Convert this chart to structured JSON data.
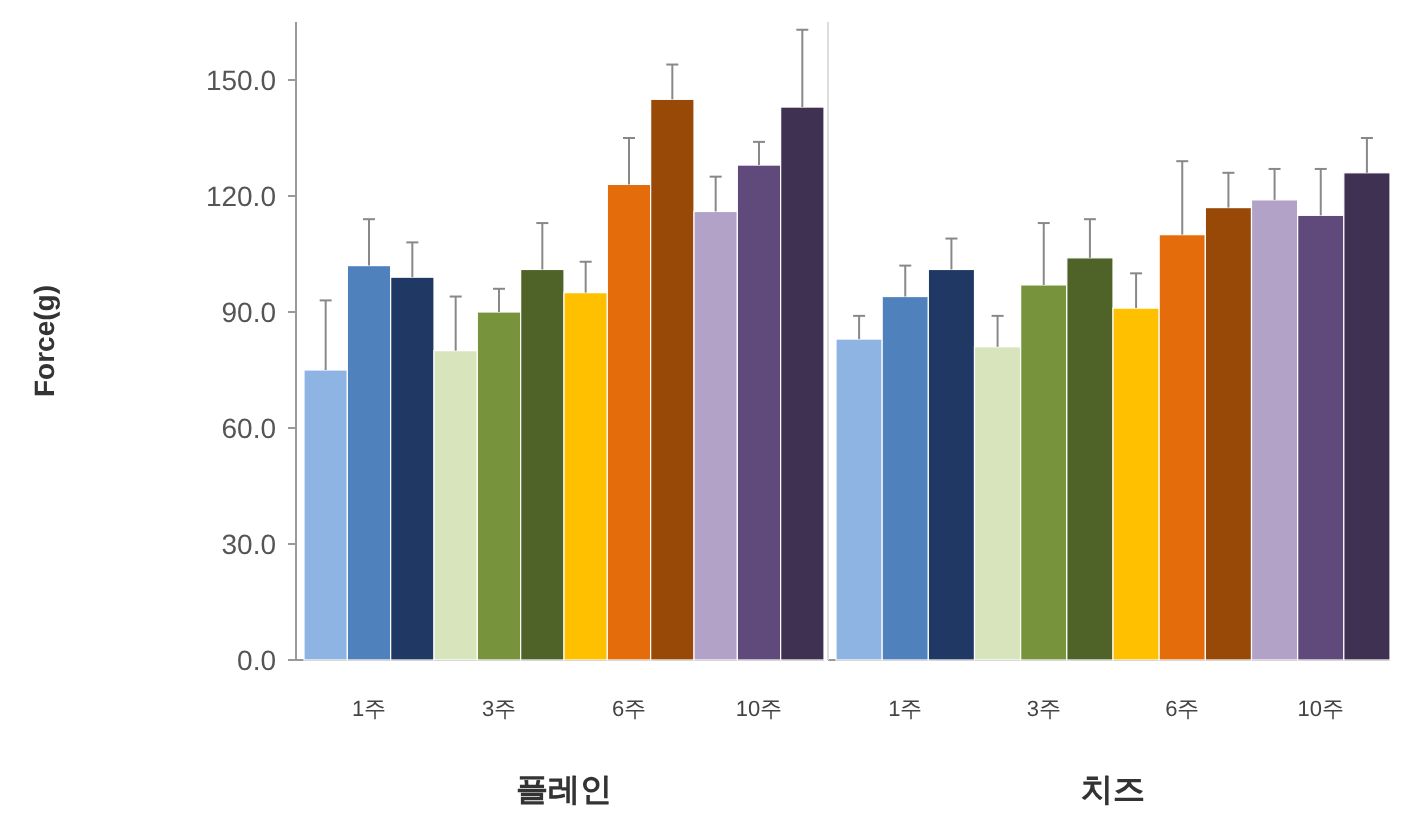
{
  "chart_data": [
    {
      "type": "bar",
      "ylabel": "Force(g)",
      "xlabel": "플레인",
      "categories": [
        null,
        "1주",
        null,
        null,
        "3주",
        null,
        null,
        "6주",
        null,
        null,
        "10주",
        null
      ],
      "values": [
        75,
        102,
        99,
        80,
        90,
        101,
        95,
        123,
        145,
        116,
        128,
        143
      ],
      "errors": [
        [
          75,
          93
        ],
        [
          102,
          114
        ],
        [
          99,
          108
        ],
        [
          80,
          94
        ],
        [
          90,
          96
        ],
        [
          101,
          113
        ],
        [
          95,
          103
        ],
        [
          123,
          135
        ],
        [
          145,
          154
        ],
        [
          116,
          125
        ],
        [
          128,
          134
        ],
        [
          143,
          163
        ]
      ],
      "colors": [
        "#8db4e2",
        "#4f81bd",
        "#1f3864",
        "#d7e4bc",
        "#77933c",
        "#4f6228",
        "#ffc000",
        "#e46c0a",
        "#984807",
        "#b3a2c7",
        "#604a7b",
        "#3f3151"
      ],
      "ylim": [
        0,
        165
      ],
      "yticks": [
        {
          "value": 0,
          "label": "0.0"
        },
        {
          "value": 30,
          "label": "30.0"
        },
        {
          "value": 60,
          "label": "60.0"
        },
        {
          "value": 90,
          "label": "90.0"
        },
        {
          "value": 120,
          "label": "120.0"
        },
        {
          "value": 150,
          "label": "150.0"
        }
      ]
    },
    {
      "type": "bar",
      "xlabel": "치즈",
      "tick_labels": "x",
      "categories": [
        null,
        "1주",
        null,
        null,
        "3주",
        null,
        null,
        "6주",
        null,
        null,
        "10주",
        null
      ],
      "values": [
        83,
        94,
        101,
        81,
        97,
        104,
        91,
        110,
        117,
        119,
        115,
        126
      ],
      "errors": [
        [
          83,
          89
        ],
        [
          94,
          102
        ],
        [
          101,
          109
        ],
        [
          81,
          89
        ],
        [
          97,
          113
        ],
        [
          104,
          114
        ],
        [
          91,
          100
        ],
        [
          110,
          129
        ],
        [
          117,
          126
        ],
        [
          119,
          127
        ],
        [
          115,
          127
        ],
        [
          126,
          135
        ]
      ],
      "colors": [
        "#8db4e2",
        "#4f81bd",
        "#1f3864",
        "#d7e4bc",
        "#77933c",
        "#4f6228",
        "#ffc000",
        "#e46c0a",
        "#984807",
        "#b3a2c7",
        "#604a7b",
        "#3f3151"
      ],
      "ylim": [
        0,
        165
      ]
    }
  ]
}
